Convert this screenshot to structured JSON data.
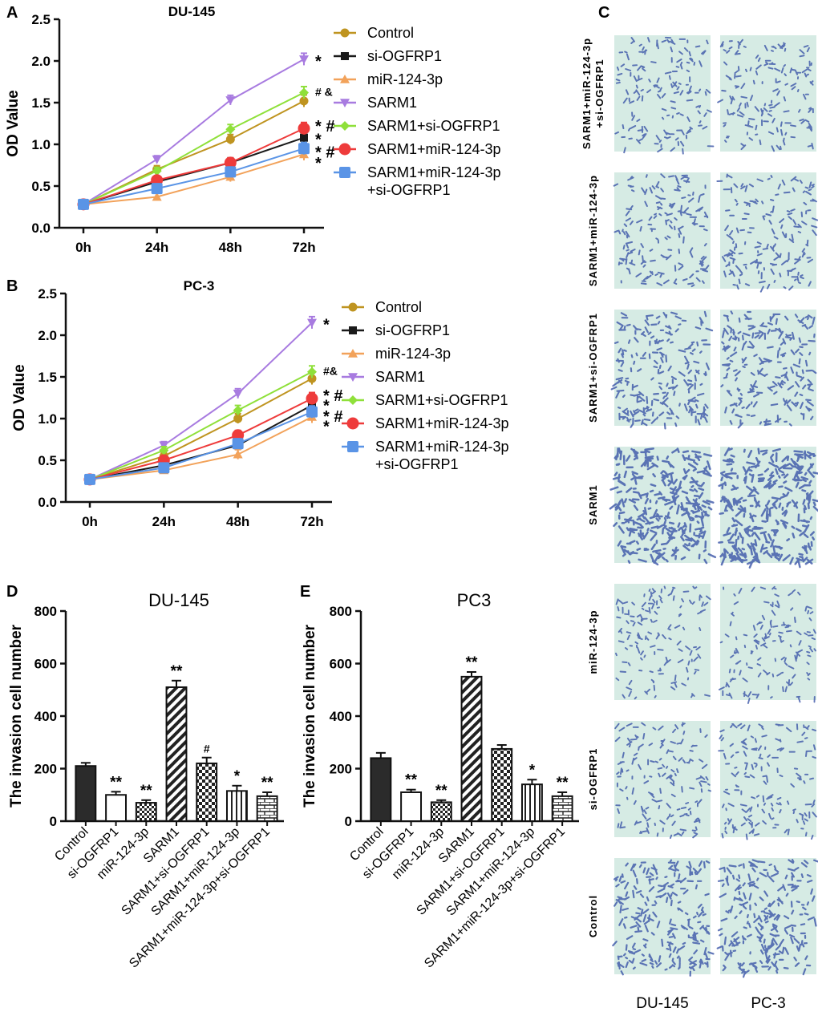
{
  "panels": {
    "A": "A",
    "B": "B",
    "C": "C",
    "D": "D",
    "E": "E"
  },
  "line_legend": [
    {
      "name": "Control",
      "color": "#bf9420",
      "marker": "circle"
    },
    {
      "name": "si-OGFRP1",
      "color": "#1a1a1a",
      "marker": "square"
    },
    {
      "name": "miR-124-3p",
      "color": "#f2a25a",
      "marker": "triangle-up"
    },
    {
      "name": "SARM1",
      "color": "#a87be0",
      "marker": "triangle-down"
    },
    {
      "name": "SARM1+si-OGFRP1",
      "color": "#8fe03a",
      "marker": "diamond"
    },
    {
      "name": "SARM1+miR-124-3p",
      "color": "#ee3b3b",
      "marker": "big-circle"
    },
    {
      "name": "SARM1+miR-124-3p",
      "name2": "+si-OGFRP1",
      "color": "#5a94e6",
      "marker": "big-square"
    }
  ],
  "chart_data": [
    {
      "type": "line",
      "title": "DU-145",
      "xlabel": "",
      "ylabel": "OD Value",
      "categories": [
        "0h",
        "24h",
        "48h",
        "72h"
      ],
      "ylim": [
        0,
        2.5
      ],
      "yticks": [
        "0.0",
        "0.5",
        "1.0",
        "1.5",
        "2.0",
        "2.5"
      ],
      "series": [
        {
          "name": "Control",
          "values": [
            0.28,
            0.7,
            1.06,
            1.52
          ]
        },
        {
          "name": "si-OGFRP1",
          "values": [
            0.28,
            0.55,
            0.78,
            1.08
          ]
        },
        {
          "name": "miR-124-3p",
          "values": [
            0.28,
            0.37,
            0.61,
            0.88
          ]
        },
        {
          "name": "SARM1",
          "values": [
            0.28,
            0.82,
            1.53,
            2.02
          ]
        },
        {
          "name": "SARM1+si-OGFRP1",
          "values": [
            0.28,
            0.68,
            1.18,
            1.62
          ]
        },
        {
          "name": "SARM1+miR-124-3p",
          "values": [
            0.28,
            0.57,
            0.78,
            1.19
          ]
        },
        {
          "name": "SARM1+miR-124-3p+si-OGFRP1",
          "values": [
            0.28,
            0.47,
            0.67,
            0.95
          ]
        }
      ],
      "annotations": [
        {
          "text": "*",
          "y": 2.02
        },
        {
          "text": "# &",
          "y": 1.63
        },
        {
          "text": "* #",
          "y": 1.24
        },
        {
          "text": "*",
          "y": 1.08
        },
        {
          "text": "* #",
          "y": 0.93
        },
        {
          "text": "*",
          "y": 0.8
        }
      ]
    },
    {
      "type": "line",
      "title": "PC-3",
      "xlabel": "",
      "ylabel": "OD Value",
      "categories": [
        "0h",
        "24h",
        "48h",
        "72h"
      ],
      "ylim": [
        0,
        2.5
      ],
      "yticks": [
        "0.0",
        "0.5",
        "1.0",
        "1.5",
        "2.0",
        "2.5"
      ],
      "series": [
        {
          "name": "Control",
          "values": [
            0.27,
            0.55,
            1.0,
            1.48
          ]
        },
        {
          "name": "si-OGFRP1",
          "values": [
            0.27,
            0.44,
            0.68,
            1.16
          ]
        },
        {
          "name": "miR-124-3p",
          "values": [
            0.27,
            0.38,
            0.57,
            1.02
          ]
        },
        {
          "name": "SARM1",
          "values": [
            0.27,
            0.68,
            1.3,
            2.15
          ]
        },
        {
          "name": "SARM1+si-OGFRP1",
          "values": [
            0.27,
            0.62,
            1.1,
            1.56
          ]
        },
        {
          "name": "SARM1+miR-124-3p",
          "values": [
            0.27,
            0.5,
            0.8,
            1.24
          ]
        },
        {
          "name": "SARM1+miR-124-3p+si-OGFRP1",
          "values": [
            0.27,
            0.41,
            0.7,
            1.08
          ]
        }
      ],
      "annotations": [
        {
          "text": "*",
          "y": 2.15
        },
        {
          "text": "#&",
          "y": 1.57
        },
        {
          "text": "* #",
          "y": 1.3
        },
        {
          "text": "*",
          "y": 1.18
        },
        {
          "text": "* #",
          "y": 1.05
        },
        {
          "text": "*",
          "y": 0.93
        }
      ]
    },
    {
      "type": "bar",
      "title": "DU-145",
      "xlabel": "",
      "ylabel": "The invasion cell number",
      "categories": [
        "Control",
        "si-OGFRP1",
        "miR-124-3p",
        "SARM1",
        "SARM1+si-OGFRP1",
        "SARM1+miR-124-3p",
        "SARM1+miR-124-3p+si-OGFRP1"
      ],
      "values": [
        210,
        100,
        70,
        510,
        220,
        115,
        95
      ],
      "errors": [
        12,
        12,
        10,
        25,
        22,
        20,
        15
      ],
      "significance": [
        "",
        "**",
        "**",
        "**",
        "#",
        "*",
        "**"
      ],
      "patterns": [
        "solid",
        "white",
        "checker",
        "diagonal",
        "checker2",
        "vertical",
        "brick"
      ],
      "ylim": [
        0,
        800
      ],
      "yticks": [
        "0",
        "200",
        "400",
        "600",
        "800"
      ]
    },
    {
      "type": "bar",
      "title": "PC3",
      "xlabel": "",
      "ylabel": "The invasion cell number",
      "categories": [
        "Control",
        "si-OGFRP1",
        "miR-124-3p",
        "SARM1",
        "SARM1+si-OGFRP1",
        "SARM1+miR-124-3p",
        "SARM1+miR-124-3p+si-OGFRP1"
      ],
      "values": [
        240,
        110,
        72,
        550,
        275,
        140,
        95
      ],
      "errors": [
        20,
        10,
        8,
        18,
        15,
        18,
        15
      ],
      "significance": [
        "",
        "**",
        "**",
        "**",
        "",
        "*",
        "**"
      ],
      "patterns": [
        "solid",
        "white",
        "checker",
        "diagonal",
        "checker2",
        "vertical",
        "brick"
      ],
      "ylim": [
        0,
        800
      ],
      "yticks": [
        "0",
        "200",
        "400",
        "600",
        "800"
      ]
    }
  ],
  "micrographs": {
    "columns": [
      "DU-145",
      "PC-3"
    ],
    "rows": [
      "SARM1+miR-124-3p\n+si-OGFRP1",
      "SARM1+miR-124-3p",
      "SARM1+si-OGFRP1",
      "SARM1",
      "miR-124-3p",
      "si-OGFRP1",
      "Control"
    ],
    "densities": [
      0.35,
      0.4,
      0.55,
      0.9,
      0.3,
      0.35,
      0.6
    ]
  },
  "colors": {
    "axis": "#111111",
    "stain": "#3b55a8"
  }
}
